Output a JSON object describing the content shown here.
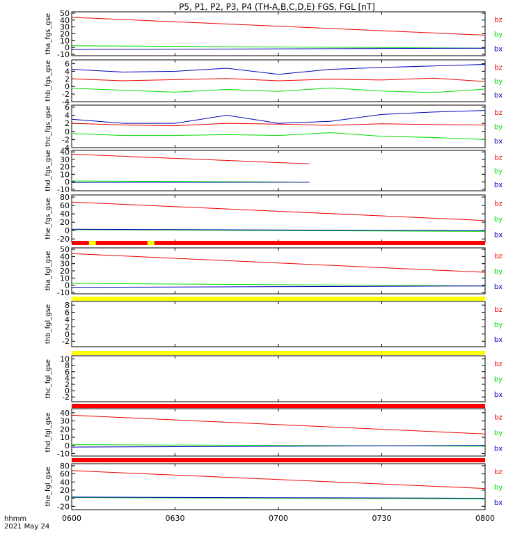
{
  "title": "P5, P1, P2, P3, P4 (TH-A,B,C,D,E) FGS, FGL [nT]",
  "footer": {
    "line1": "hhmm",
    "line2": "2021 May 24"
  },
  "chart_data": {
    "type": "line",
    "x_ticks": [
      "0600",
      "0630",
      "0700",
      "0730",
      "0800"
    ],
    "x_range": [
      "06:00",
      "08:00"
    ],
    "colors": {
      "bz": "#ee0000",
      "by": "#00dd00",
      "bx": "#0000bb",
      "flag_red": "#ff0000",
      "flag_yellow": "#ffff00"
    },
    "panels": [
      {
        "ylabel": "tha_fgs_gse",
        "ylim": [
          -12,
          52
        ],
        "yticks": [
          -10,
          0,
          10,
          20,
          30,
          40,
          50
        ],
        "legend": [
          "bz",
          "by",
          "bx"
        ],
        "series": [
          {
            "name": "bz",
            "x": [
              0,
              120
            ],
            "y": [
              44,
              18
            ]
          },
          {
            "name": "by",
            "x": [
              0,
              120
            ],
            "y": [
              2.5,
              -1
            ]
          },
          {
            "name": "bx",
            "x": [
              0,
              120
            ],
            "y": [
              -3,
              -1
            ]
          }
        ]
      },
      {
        "ylabel": "thb_fgs_gse",
        "ylim": [
          -4,
          7
        ],
        "yticks": [
          -4,
          -2,
          0,
          2,
          4,
          6
        ],
        "legend": [
          "bz",
          "by",
          "bx"
        ],
        "series": [
          {
            "name": "bz",
            "x": [
              0,
              15,
              30,
              45,
              60,
              75,
              90,
              105,
              120
            ],
            "y": [
              2,
              1.5,
              1.8,
              2.1,
              1.5,
              1.9,
              1.7,
              2.2,
              1.3
            ]
          },
          {
            "name": "by",
            "x": [
              0,
              15,
              30,
              45,
              60,
              75,
              90,
              105,
              120
            ],
            "y": [
              -0.5,
              -1,
              -1.5,
              -0.8,
              -1.3,
              -0.4,
              -1.2,
              -1.6,
              -0.7
            ]
          },
          {
            "name": "bx",
            "x": [
              0,
              15,
              30,
              45,
              60,
              75,
              90,
              105,
              120
            ],
            "y": [
              4.5,
              3.8,
              4.0,
              4.8,
              3.2,
              4.5,
              5.0,
              5.4,
              5.8
            ]
          }
        ]
      },
      {
        "ylabel": "thc_fgs_gse",
        "ylim": [
          -4,
          6.5
        ],
        "yticks": [
          -4,
          -2,
          0,
          2,
          4,
          6
        ],
        "legend": [
          "bz",
          "by",
          "bx"
        ],
        "series": [
          {
            "name": "bz",
            "x": [
              0,
              15,
              30,
              45,
              60,
              75,
              90,
              105,
              120
            ],
            "y": [
              2,
              1.6,
              1.4,
              2.0,
              1.8,
              1.5,
              1.9,
              1.7,
              1.6
            ]
          },
          {
            "name": "by",
            "x": [
              0,
              15,
              30,
              45,
              60,
              75,
              90,
              105,
              120
            ],
            "y": [
              -0.5,
              -1,
              -1.0,
              -0.8,
              -1.0,
              -0.3,
              -1.2,
              -1.5,
              -2.0
            ]
          },
          {
            "name": "bx",
            "x": [
              0,
              15,
              30,
              45,
              60,
              75,
              90,
              105,
              120
            ],
            "y": [
              3,
              2.0,
              2.0,
              4.0,
              2.0,
              2.5,
              4.2,
              4.8,
              5.2
            ]
          }
        ]
      },
      {
        "ylabel": "thd_fgs_gse",
        "ylim": [
          -12,
          42
        ],
        "yticks": [
          -10,
          0,
          10,
          20,
          30,
          40
        ],
        "legend": [
          "bz",
          "by",
          "bx"
        ],
        "series": [
          {
            "name": "bz",
            "x": [
              0,
              69
            ],
            "y": [
              37,
              24
            ]
          },
          {
            "name": "by",
            "x": [
              0,
              69
            ],
            "y": [
              1,
              -0.5
            ]
          },
          {
            "name": "bx",
            "x": [
              0,
              69
            ],
            "y": [
              -1,
              -0.5
            ]
          }
        ]
      },
      {
        "ylabel": "the_fgs_gse",
        "ylim": [
          -28,
          85
        ],
        "yticks": [
          -20,
          0,
          20,
          40,
          60,
          80
        ],
        "legend": [
          "bz",
          "by",
          "bx"
        ],
        "series": [
          {
            "name": "bz",
            "x": [
              0,
              120
            ],
            "y": [
              68,
              24
            ]
          },
          {
            "name": "by",
            "x": [
              0,
              120
            ],
            "y": [
              2,
              -2
            ]
          },
          {
            "name": "bx",
            "x": [
              0,
              120
            ],
            "y": [
              3,
              0
            ]
          }
        ]
      },
      {
        "ylabel": "tha_fgl_gse",
        "ylim": [
          -12,
          52
        ],
        "yticks": [
          -10,
          0,
          10,
          20,
          30,
          40,
          50
        ],
        "legend": [
          "bz",
          "by",
          "bx"
        ],
        "series": [
          {
            "name": "bz",
            "x": [
              0,
              120
            ],
            "y": [
              44,
              18
            ]
          },
          {
            "name": "by",
            "x": [
              0,
              120
            ],
            "y": [
              2.5,
              -1
            ]
          },
          {
            "name": "bx",
            "x": [
              0,
              120
            ],
            "y": [
              -3,
              -1
            ]
          }
        ]
      },
      {
        "ylabel": "thb_fgl_gse",
        "ylim": [
          -3.5,
          9
        ],
        "yticks": [
          -2,
          0,
          2,
          4,
          6,
          8
        ],
        "legend": [
          "bz",
          "by",
          "bx"
        ],
        "series": []
      },
      {
        "ylabel": "thc_fgl_gse",
        "ylim": [
          -3.5,
          11
        ],
        "yticks": [
          -2,
          0,
          2,
          4,
          6,
          8,
          10
        ],
        "legend": [
          "bz",
          "by",
          "bx"
        ],
        "series": []
      },
      {
        "ylabel": "thd_fgl_gse",
        "ylim": [
          -13,
          45
        ],
        "yticks": [
          -10,
          0,
          10,
          20,
          30,
          40
        ],
        "legend": [
          "bz",
          "by",
          "bx"
        ],
        "series": [
          {
            "name": "bz",
            "x": [
              0,
              120
            ],
            "y": [
              37,
              14
            ]
          },
          {
            "name": "by",
            "x": [
              0,
              120
            ],
            "y": [
              1,
              -1
            ]
          },
          {
            "name": "bx",
            "x": [
              0,
              120
            ],
            "y": [
              -2,
              0
            ]
          }
        ]
      },
      {
        "ylabel": "the_fgl_gse",
        "ylim": [
          -28,
          85
        ],
        "yticks": [
          -20,
          0,
          20,
          40,
          60,
          80
        ],
        "legend": [
          "bz",
          "by",
          "bx"
        ],
        "series": [
          {
            "name": "bz",
            "x": [
              0,
              120
            ],
            "y": [
              68,
              24
            ]
          },
          {
            "name": "by",
            "x": [
              0,
              120
            ],
            "y": [
              2,
              -2
            ]
          },
          {
            "name": "bx",
            "x": [
              0,
              120
            ],
            "y": [
              3,
              0
            ]
          }
        ]
      }
    ],
    "flag_bars": [
      {
        "segments": [
          {
            "x0": 0,
            "x1": 120,
            "color": "flag_red"
          },
          {
            "x0": 5,
            "x1": 7,
            "color": "flag_yellow"
          },
          {
            "x0": 22,
            "x1": 24,
            "color": "flag_yellow"
          }
        ]
      },
      {
        "segments": [
          {
            "x0": 0,
            "x1": 120,
            "color": "flag_yellow"
          }
        ]
      },
      {
        "segments": [
          {
            "x0": 0,
            "x1": 120,
            "color": "flag_yellow"
          }
        ]
      },
      {
        "segments": [
          {
            "x0": 0,
            "x1": 120,
            "color": "flag_red"
          }
        ]
      },
      {
        "segments": [
          {
            "x0": 0,
            "x1": 120,
            "color": "flag_red"
          }
        ]
      }
    ]
  }
}
